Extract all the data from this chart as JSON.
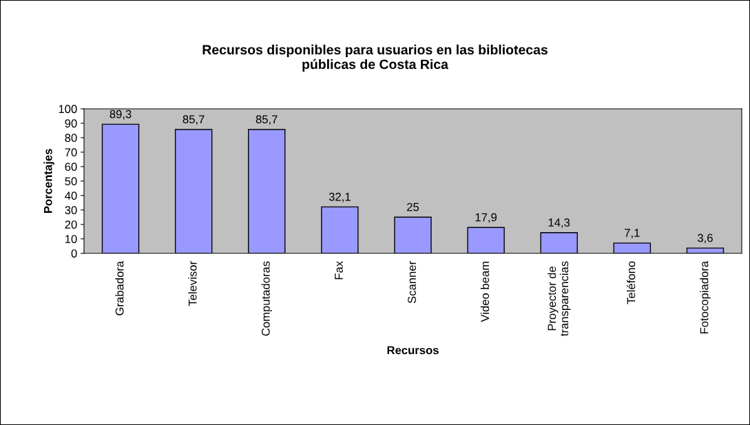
{
  "chart_data": {
    "type": "bar",
    "title": "Recursos disponibles para usuarios en las bibliotecas\npúblicas de Costa Rica",
    "xlabel": "Recursos",
    "ylabel": "Porcentajes",
    "categories": [
      "Grabadora",
      "Televisor",
      "Computadoras",
      "Fax",
      "Scanner",
      "Video beam",
      "Proyector de\ntransparencias",
      "Teléfono",
      "Fotocopiadora"
    ],
    "values": [
      89.3,
      85.7,
      85.7,
      32.1,
      25,
      17.9,
      14.3,
      7.1,
      3.6
    ],
    "value_labels": [
      "89,3",
      "85,7",
      "85,7",
      "32,1",
      "25",
      "17,9",
      "14,3",
      "7,1",
      "3,6"
    ],
    "color": "#9999ff",
    "ylim": [
      0,
      100
    ],
    "yticks": [
      0,
      10,
      20,
      30,
      40,
      50,
      60,
      70,
      80,
      90,
      100
    ],
    "grid": false,
    "legend": false
  }
}
